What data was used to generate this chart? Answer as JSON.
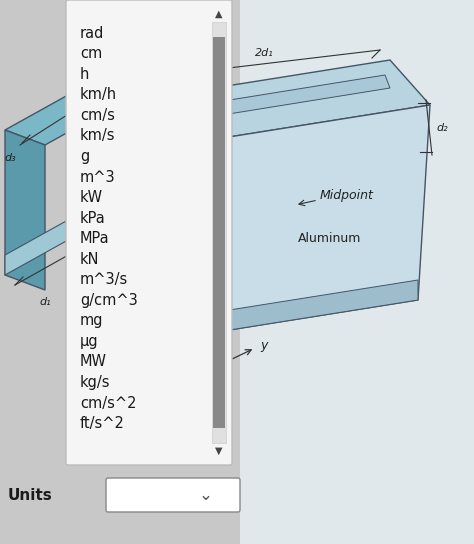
{
  "bg_color": "#c8c8c8",
  "dropdown_bg": "#f5f5f5",
  "dropdown_border": "#bbbbbb",
  "scrollbar_bg": "#d0d0d0",
  "scrollbar_thumb": "#888888",
  "dropdown_items": [
    "rad",
    "cm",
    "h",
    "km/h",
    "cm/s",
    "km/s",
    "g",
    "m^3",
    "kW",
    "kPa",
    "MPa",
    "kN",
    "m^3/s",
    "g/cm^3",
    "mg",
    "μg",
    "MW",
    "kg/s",
    "cm/s^2",
    "ft/s^2"
  ],
  "units_label": "Units",
  "slab_label": "Aluminum",
  "midpoint_label": "Midpoint",
  "d1_label": "d₁",
  "d2_label": "d₂",
  "d3_label": "d₃",
  "twod1_label": "2d₁",
  "y_label": "y",
  "slab_top_color": "#b8d4e0",
  "slab_front_color": "#c8dde8",
  "slab_left_color": "#85afc0",
  "slab_inner_color": "#d8eaf2",
  "slab_edge_color": "#445566",
  "left_slab_top": "#7ab8c8",
  "left_slab_side": "#5a9aaa",
  "left_slab_bottom_color": "#4a8898",
  "bg_right": "#e8e8e8",
  "note_color": "#333333",
  "font_size": 10.5
}
